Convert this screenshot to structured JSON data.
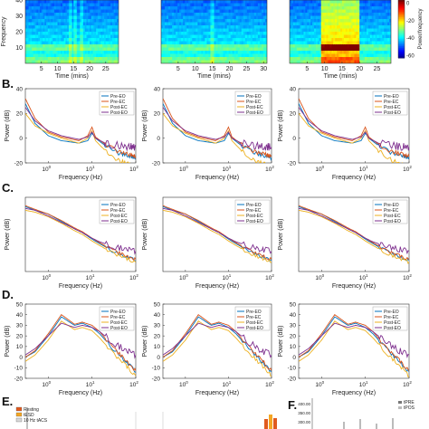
{
  "figure": {
    "row_letters": [
      "B.",
      "C.",
      "D.",
      "E.",
      "F."
    ],
    "colorbar": {
      "ticks": [
        "0",
        "-20",
        "-40",
        "-60"
      ],
      "label": "Power/frequency"
    }
  },
  "chart_data": [
    {
      "id": "A",
      "type": "heatmap",
      "panels": [
        {
          "xticks": [
            5,
            10,
            15,
            20,
            25
          ],
          "xlim": [
            0,
            29
          ],
          "ylabel": "Frequency",
          "yticks": [
            10,
            20,
            30,
            40
          ],
          "ylim": [
            0,
            40
          ],
          "xlabel": "Time (mins)",
          "noise_stripes": [
            14,
            15.5,
            17.5
          ]
        },
        {
          "xticks": [
            5,
            10,
            15,
            20,
            25,
            30
          ],
          "xlim": [
            0,
            31
          ],
          "ylabel": "",
          "yticks": [],
          "ylim": [
            0,
            40
          ],
          "xlabel": "Time (mins)",
          "noise_stripes": [
            15
          ]
        },
        {
          "xticks": [
            5,
            10,
            15,
            20,
            25
          ],
          "xlim": [
            0,
            29
          ],
          "ylabel": "",
          "yticks": [],
          "ylim": [
            0,
            40
          ],
          "xlabel": "Time (mins)",
          "stim_window": [
            9,
            20
          ]
        }
      ],
      "clim": [
        -60,
        0
      ]
    },
    {
      "id": "B",
      "type": "line",
      "xlabel": "Frequency (Hz)",
      "ylabel": "Power (dB)",
      "xscale": "log",
      "xlim": [
        0.3,
        100
      ],
      "panels": [
        {
          "ylim": [
            -20,
            40
          ],
          "yticks": [
            -20,
            0,
            20,
            40
          ]
        },
        {
          "ylim": [
            -20,
            40
          ],
          "yticks": [
            -20,
            0,
            20,
            40
          ]
        },
        {
          "ylim": [
            -20,
            40
          ],
          "yticks": [
            -20,
            0,
            20,
            40
          ]
        }
      ],
      "legend": [
        "Pre-EO",
        "Pre-EC",
        "Post-EC",
        "Post-EO"
      ],
      "legend_position": "top-right",
      "series_colors": [
        "#0072bd",
        "#d95319",
        "#edb120",
        "#7e2f8e"
      ],
      "x": [
        0.3,
        0.5,
        1,
        2,
        5,
        8,
        10,
        12,
        20,
        40,
        70,
        100
      ],
      "series": [
        {
          "name": "Pre-EO",
          "values": [
            28,
            12,
            2,
            -2,
            -4,
            -2,
            4,
            0,
            -6,
            -12,
            -14,
            -16
          ]
        },
        {
          "name": "Pre-EC",
          "values": [
            32,
            16,
            5,
            1,
            -2,
            2,
            9,
            1,
            -5,
            -11,
            -13,
            -15
          ]
        },
        {
          "name": "Post-EC",
          "values": [
            20,
            10,
            4,
            0,
            -4,
            0,
            6,
            -2,
            -10,
            -18,
            -21,
            -24
          ]
        },
        {
          "name": "Post-EO",
          "values": [
            25,
            14,
            6,
            2,
            -1,
            1,
            5,
            0,
            -4,
            -6,
            -7,
            -7
          ]
        }
      ]
    },
    {
      "id": "C",
      "type": "line",
      "xlabel": "Frequency (Hz)",
      "ylabel": "Power (dB)",
      "xscale": "log",
      "xlim": [
        0.3,
        100
      ],
      "legend": [
        "Pre-EO",
        "Pre-EC",
        "Post-EC",
        "Post-EO"
      ],
      "legend_position": "top-right",
      "series_colors": [
        "#0072bd",
        "#d95319",
        "#edb120",
        "#7e2f8e"
      ],
      "x": [
        0.3,
        0.5,
        1,
        2,
        4,
        6,
        10,
        15,
        30,
        60,
        100
      ],
      "series": [
        {
          "name": "Pre-EO",
          "values": [
            30,
            26,
            22,
            14,
            6,
            2,
            -5,
            -10,
            -18,
            -24,
            -28
          ]
        },
        {
          "name": "Pre-EC",
          "values": [
            31,
            27,
            22,
            15,
            7,
            3,
            -4,
            -9,
            -17,
            -23,
            -27
          ]
        },
        {
          "name": "Post-EC",
          "values": [
            26,
            24,
            19,
            12,
            4,
            0,
            -7,
            -12,
            -20,
            -26,
            -30
          ]
        },
        {
          "name": "Post-EO",
          "values": [
            28,
            26,
            20,
            13,
            6,
            2,
            -4,
            -8,
            -13,
            -16,
            -18
          ]
        }
      ]
    },
    {
      "id": "D",
      "type": "line",
      "xlabel": "Frequency (Hz)",
      "ylabel": "Power (dB)",
      "xscale": "log",
      "xlim": [
        0.3,
        100
      ],
      "panels": [
        {
          "ylim": [
            -20,
            50
          ],
          "yticks": [
            -20,
            -10,
            0,
            10,
            20,
            30,
            40,
            50
          ]
        },
        {
          "ylim": [
            -20,
            50
          ],
          "yticks": [
            -20,
            -10,
            0,
            10,
            20,
            30,
            40,
            50
          ]
        },
        {
          "ylim": [
            -20,
            50
          ],
          "yticks": [
            -20,
            -10,
            0,
            10,
            20,
            30,
            40,
            50
          ]
        }
      ],
      "legend": [
        "Pre-EO",
        "Pre-EC",
        "Post-EC",
        "Post-EO"
      ],
      "legend_position": "top-right",
      "series_colors": [
        "#0072bd",
        "#d95319",
        "#edb120",
        "#7e2f8e"
      ],
      "x": [
        0.3,
        0.5,
        1,
        2,
        4,
        6,
        10,
        15,
        30,
        60,
        100
      ],
      "series": [
        {
          "name": "Pre-EO",
          "values": [
            0,
            5,
            20,
            38,
            30,
            32,
            28,
            22,
            8,
            -4,
            -14
          ]
        },
        {
          "name": "Pre-EC",
          "values": [
            0,
            6,
            22,
            40,
            31,
            33,
            30,
            24,
            9,
            -3,
            -13
          ]
        },
        {
          "name": "Post-EC",
          "values": [
            -4,
            2,
            16,
            34,
            26,
            28,
            25,
            18,
            4,
            -8,
            -18
          ]
        },
        {
          "name": "Post-EO",
          "values": [
            2,
            8,
            20,
            32,
            28,
            30,
            28,
            24,
            14,
            6,
            2
          ]
        }
      ]
    },
    {
      "id": "E",
      "type": "bar",
      "legend": [
        "Resting",
        "tESD",
        "10 Hz tACS"
      ],
      "series_colors": [
        "#e05a1e",
        "#f5a623",
        "#d7d7d7"
      ],
      "note": "panel cropped at image bottom"
    },
    {
      "id": "F",
      "type": "bar",
      "legend": [
        "tPRE",
        "tPOS"
      ],
      "yticks": [
        "400.00",
        "350.00",
        "300.00"
      ],
      "note": "panel cropped at image bottom"
    }
  ]
}
